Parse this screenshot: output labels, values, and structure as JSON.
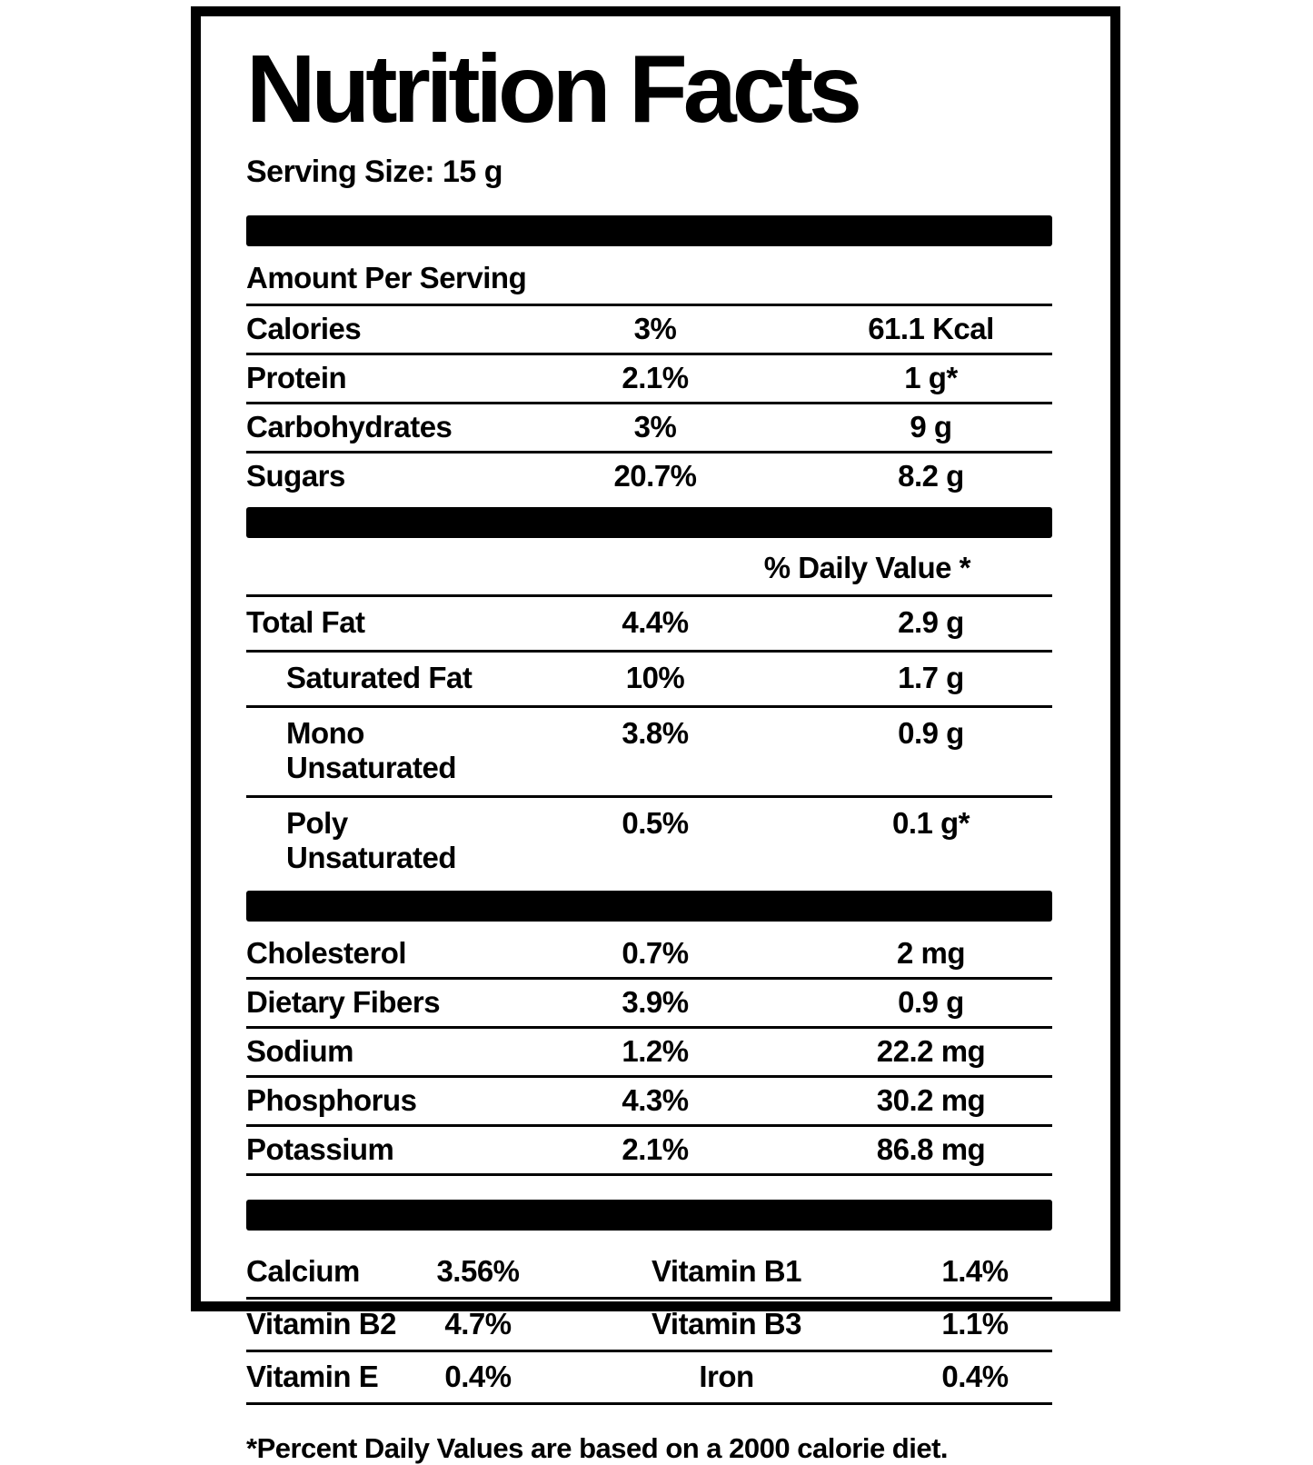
{
  "label": {
    "title": "Nutrition Facts",
    "serving_size": "Serving Size: 15 g",
    "amount_per_serving": "Amount Per Serving",
    "daily_value_header": "% Daily Value *",
    "footnote": "*Percent Daily Values are based on a 2000 calorie diet."
  },
  "sections": {
    "main": [
      {
        "name": "Calories",
        "percent": "3%",
        "amount": "61.1 Kcal"
      },
      {
        "name": "Protein",
        "percent": "2.1%",
        "amount": "1 g*"
      },
      {
        "name": "Carbohydrates",
        "percent": "3%",
        "amount": "9 g"
      },
      {
        "name": "Sugars",
        "percent": "20.7%",
        "amount": "8.2 g"
      }
    ],
    "fats": [
      {
        "name": "Total Fat",
        "percent": "4.4%",
        "amount": "2.9 g",
        "indent": false
      },
      {
        "name": "Saturated Fat",
        "percent": "10%",
        "amount": "1.7 g",
        "indent": true
      },
      {
        "name": "Mono Unsaturated",
        "percent": "3.8%",
        "amount": "0.9 g",
        "indent": true
      },
      {
        "name": "Poly Unsaturated",
        "percent": "0.5%",
        "amount": "0.1 g*",
        "indent": true
      }
    ],
    "minerals": [
      {
        "name": "Cholesterol",
        "percent": "0.7%",
        "amount": "2 mg"
      },
      {
        "name": "Dietary Fibers",
        "percent": "3.9%",
        "amount": "0.9 g"
      },
      {
        "name": "Sodium",
        "percent": "1.2%",
        "amount": "22.2 mg"
      },
      {
        "name": "Phosphorus",
        "percent": "4.3%",
        "amount": "30.2 mg"
      },
      {
        "name": "Potassium",
        "percent": "2.1%",
        "amount": "86.8 mg"
      }
    ],
    "vitamins": [
      {
        "name1": "Calcium",
        "value1": "3.56%",
        "name2": "Vitamin B1",
        "value2": "1.4%"
      },
      {
        "name1": "Vitamin B2",
        "value1": "4.7%",
        "name2": "Vitamin B3",
        "value2": "1.1%"
      },
      {
        "name1": "Vitamin E",
        "value1": "0.4%",
        "name2": "Iron",
        "value2": "0.4%"
      }
    ]
  },
  "colors": {
    "text": "#000000",
    "background": "#ffffff"
  }
}
